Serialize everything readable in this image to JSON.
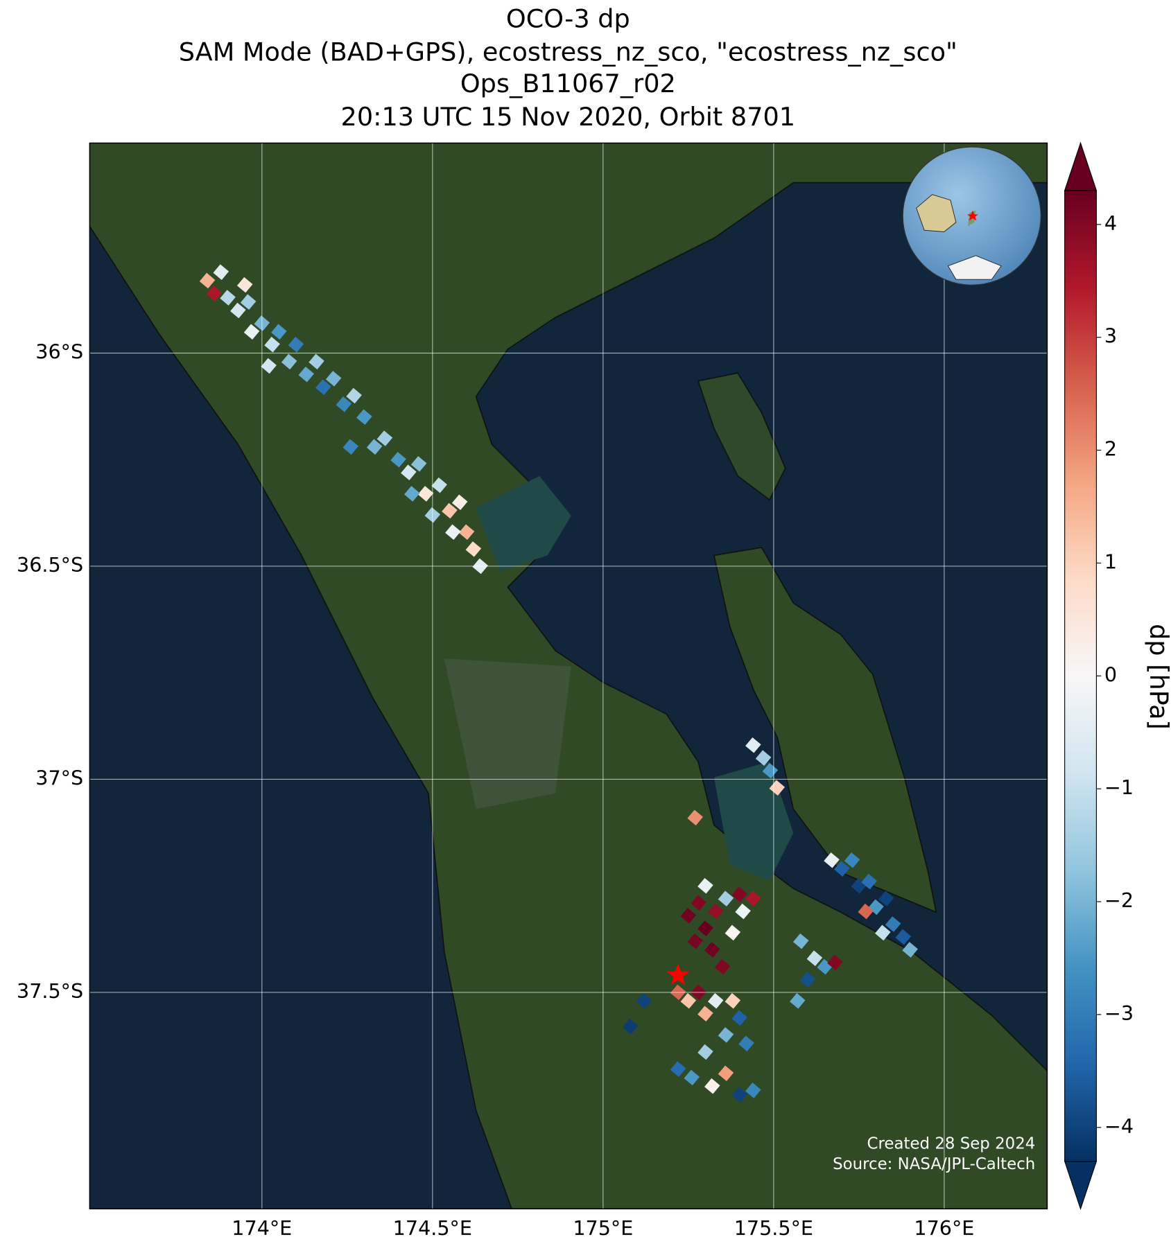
{
  "map": {
    "title": [
      "OCO-3 dp",
      "SAM Mode (BAD+GPS), ecostress_nz_sco, \"ecostress_nz_sco\"",
      "Ops_B11067_r02",
      "20:13 UTC 15 Nov 2020, Orbit 8701"
    ],
    "lonlim": [
      173.495,
      176.302
    ],
    "latlim": [
      -38.008,
      -35.507
    ],
    "xticks": [
      {
        "value": 174,
        "label": "174°E"
      },
      {
        "value": 174.5,
        "label": "174.5°E"
      },
      {
        "value": 175,
        "label": "175°E"
      },
      {
        "value": 175.5,
        "label": "175.5°E"
      },
      {
        "value": 176,
        "label": "176°E"
      }
    ],
    "yticks": [
      {
        "value": -36,
        "label": "36°S"
      },
      {
        "value": -36.5,
        "label": "36.5°S"
      },
      {
        "value": -37,
        "label": "37°S"
      },
      {
        "value": -37.5,
        "label": "37.5°S"
      }
    ],
    "grid": true,
    "cells": [
      [
        173.84,
        -35.83,
        1.5
      ],
      [
        173.86,
        -35.86,
        3.5
      ],
      [
        173.88,
        -35.81,
        -0.5
      ],
      [
        173.9,
        -35.87,
        -1.2
      ],
      [
        173.93,
        -35.9,
        -0.8
      ],
      [
        173.96,
        -35.88,
        -1.5
      ],
      [
        173.97,
        -35.95,
        -0.3
      ],
      [
        174.0,
        -35.93,
        -2.0
      ],
      [
        174.03,
        -35.98,
        -1.0
      ],
      [
        174.05,
        -35.95,
        -2.5
      ],
      [
        174.08,
        -36.02,
        -1.8
      ],
      [
        174.1,
        -35.98,
        -3.0
      ],
      [
        174.13,
        -36.05,
        -2.2
      ],
      [
        174.16,
        -36.02,
        -1.5
      ],
      [
        174.18,
        -36.08,
        -3.2
      ],
      [
        174.21,
        -36.06,
        -2.0
      ],
      [
        174.24,
        -36.12,
        -2.8
      ],
      [
        174.27,
        -36.1,
        -1.3
      ],
      [
        174.3,
        -36.15,
        -2.5
      ],
      [
        173.95,
        -35.84,
        0.5
      ],
      [
        174.02,
        -36.03,
        -0.8
      ],
      [
        174.33,
        -36.22,
        -2.0
      ],
      [
        174.36,
        -36.2,
        -1.5
      ],
      [
        174.4,
        -36.25,
        -2.5
      ],
      [
        174.43,
        -36.28,
        -0.8
      ],
      [
        174.46,
        -36.26,
        -1.8
      ],
      [
        174.48,
        -36.33,
        0.5
      ],
      [
        174.52,
        -36.31,
        -1.0
      ],
      [
        174.55,
        -36.37,
        1.2
      ],
      [
        174.58,
        -36.35,
        0.3
      ],
      [
        174.6,
        -36.42,
        1.5
      ],
      [
        174.62,
        -36.46,
        0.8
      ],
      [
        174.64,
        -36.5,
        -0.5
      ],
      [
        174.56,
        -36.42,
        -0.3
      ],
      [
        174.5,
        -36.38,
        -1.5
      ],
      [
        174.44,
        -36.33,
        -2.2
      ],
      [
        174.26,
        -36.22,
        -2.8
      ],
      [
        175.44,
        -36.92,
        -0.5
      ],
      [
        175.47,
        -36.95,
        -1.5
      ],
      [
        175.49,
        -36.98,
        -2.5
      ],
      [
        175.51,
        -37.02,
        1.0
      ],
      [
        175.27,
        -37.09,
        2.0
      ],
      [
        175.67,
        -37.19,
        -0.3
      ],
      [
        175.7,
        -37.21,
        -3.5
      ],
      [
        175.73,
        -37.19,
        -2.8
      ],
      [
        175.75,
        -37.25,
        -4.0
      ],
      [
        175.78,
        -37.24,
        -3.2
      ],
      [
        175.8,
        -37.3,
        -2.5
      ],
      [
        175.83,
        -37.28,
        -4.0
      ],
      [
        175.85,
        -37.34,
        -3.0
      ],
      [
        175.88,
        -37.37,
        -3.6
      ],
      [
        175.9,
        -37.4,
        -2.0
      ],
      [
        175.77,
        -37.31,
        2.5
      ],
      [
        175.82,
        -37.36,
        -1.0
      ],
      [
        175.25,
        -37.32,
        4.2
      ],
      [
        175.28,
        -37.29,
        4.0
      ],
      [
        175.3,
        -37.35,
        4.3
      ],
      [
        175.33,
        -37.31,
        3.8
      ],
      [
        175.27,
        -37.38,
        4.1
      ],
      [
        175.32,
        -37.4,
        4.2
      ],
      [
        175.36,
        -37.28,
        -1.5
      ],
      [
        175.4,
        -37.27,
        4.0
      ],
      [
        175.44,
        -37.28,
        3.5
      ],
      [
        175.41,
        -37.31,
        -0.2
      ],
      [
        175.35,
        -37.44,
        4.0
      ],
      [
        175.3,
        -37.25,
        -0.3
      ],
      [
        175.38,
        -37.36,
        0.1
      ],
      [
        175.22,
        -37.5,
        2.5
      ],
      [
        175.25,
        -37.52,
        1.2
      ],
      [
        175.28,
        -37.5,
        4.0
      ],
      [
        175.3,
        -37.55,
        1.5
      ],
      [
        175.33,
        -37.52,
        -0.5
      ],
      [
        175.38,
        -37.52,
        1.0
      ],
      [
        175.4,
        -37.56,
        -3.5
      ],
      [
        175.36,
        -37.6,
        -2.0
      ],
      [
        175.42,
        -37.62,
        -3.0
      ],
      [
        175.3,
        -37.64,
        -1.5
      ],
      [
        175.26,
        -37.7,
        -2.5
      ],
      [
        175.32,
        -37.72,
        0.2
      ],
      [
        175.36,
        -37.69,
        1.8
      ],
      [
        175.4,
        -37.74,
        -4.0
      ],
      [
        175.44,
        -37.73,
        -2.8
      ],
      [
        175.22,
        -37.68,
        -3.3
      ],
      [
        175.12,
        -37.52,
        -4.0
      ],
      [
        175.08,
        -37.58,
        -4.1
      ],
      [
        175.58,
        -37.38,
        -2.0
      ],
      [
        175.62,
        -37.42,
        -1.0
      ],
      [
        175.6,
        -37.47,
        -3.8
      ],
      [
        175.65,
        -37.44,
        -2.5
      ],
      [
        175.57,
        -37.52,
        -2.2
      ],
      [
        175.68,
        -37.43,
        4.0
      ]
    ],
    "target": [
      175.22,
      -37.46
    ],
    "colorbar": {
      "label": "dp [hPa]",
      "lim": [
        -4.3,
        4.3
      ],
      "ticks": [
        {
          "value": -4,
          "label": "−4"
        },
        {
          "value": -3,
          "label": "−3"
        },
        {
          "value": -2,
          "label": "−2"
        },
        {
          "value": -1,
          "label": "−1"
        },
        0,
        1,
        2,
        3,
        4
      ],
      "colors": [
        "#053061",
        "#2166ac",
        "#4393c3",
        "#92c5de",
        "#d1e5f0",
        "#f7f7f7",
        "#fddbc7",
        "#f4a582",
        "#d6604d",
        "#b2182b",
        "#67001f"
      ]
    },
    "credits": [
      "Created 28 Sep 2024",
      "Source: NASA/JPL-Caltech"
    ]
  }
}
